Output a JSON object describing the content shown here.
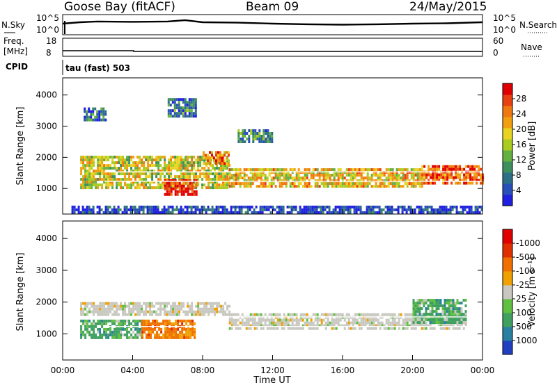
{
  "header": {
    "station": "Goose Bay (fitACF)",
    "beam": "Beam 09",
    "date": "24/May/2015"
  },
  "side_labels": {
    "nsky": "N.Sky",
    "nsearch": "N.Search",
    "freq_line1": "Freq.",
    "freq_line2": "[MHz]",
    "nave": "Nave",
    "cpid": "CPID",
    "cpid_value": "tau (fast) 503"
  },
  "chart_data": [
    {
      "type": "line",
      "panel": "noise",
      "left_ticks": [
        "10^5",
        "10^0"
      ],
      "right_ticks": [
        "10^5",
        "10^0"
      ],
      "series": [
        {
          "name": "N.Sky",
          "x": [
            "00:00",
            "01:00",
            "02:00",
            "04:00",
            "06:00",
            "07:00",
            "08:00",
            "10:00",
            "12:00",
            "14:00",
            "16:00",
            "18:00",
            "20:00",
            "22:00",
            "23:59"
          ],
          "y_fraction": [
            0.55,
            0.62,
            0.66,
            0.64,
            0.66,
            0.72,
            0.62,
            0.6,
            0.55,
            0.52,
            0.5,
            0.52,
            0.55,
            0.57,
            0.62
          ]
        }
      ]
    },
    {
      "type": "line",
      "panel": "frequency",
      "left_ticks": [
        "18",
        "8"
      ],
      "right_ticks": [
        "60",
        "0"
      ],
      "series": [
        {
          "name": "Freq.",
          "x": [
            "00:00",
            "04:15",
            "04:16",
            "24:00"
          ],
          "y": [
            10.6,
            10.6,
            10.2,
            10.2
          ]
        }
      ]
    },
    {
      "type": "heatmap",
      "panel": "power",
      "ylabel": "Slant Range [km]",
      "yticks": [
        1000,
        2000,
        3000,
        4000
      ],
      "ylim": [
        180,
        4550
      ],
      "colorbar": {
        "label": "Power [dB]",
        "ticks": [
          "4",
          "8",
          "12",
          "16",
          "20",
          "24",
          "28"
        ],
        "colors": [
          "#2020e0",
          "#2850b8",
          "#2d6f86",
          "#3d8f5c",
          "#64b040",
          "#aacc20",
          "#e8d420",
          "#f0a010",
          "#f07810",
          "#e84010",
          "#e00000"
        ]
      },
      "bands": [
        {
          "t_start": 1.0,
          "t_end": 9.5,
          "r_low": 1050,
          "r_high": 2050,
          "level": 0.55
        },
        {
          "t_start": 8.0,
          "t_end": 9.5,
          "r_low": 1800,
          "r_high": 2200,
          "level": 0.75
        },
        {
          "t_start": 9.5,
          "t_end": 20.5,
          "r_low": 1100,
          "r_high": 1650,
          "level": 0.62
        },
        {
          "t_start": 20.5,
          "t_end": 24.0,
          "r_low": 1150,
          "r_high": 1750,
          "level": 0.85
        },
        {
          "t_start": 5.8,
          "t_end": 7.6,
          "r_low": 800,
          "r_high": 1300,
          "level": 0.95
        },
        {
          "t_start": 1.2,
          "t_end": 2.5,
          "r_low": 3200,
          "r_high": 3600,
          "level": 0.2
        },
        {
          "t_start": 6.0,
          "t_end": 7.6,
          "r_low": 3300,
          "r_high": 3900,
          "level": 0.25
        },
        {
          "t_start": 10.0,
          "t_end": 12.0,
          "r_low": 2500,
          "r_high": 2900,
          "level": 0.3
        },
        {
          "t_start": 0.5,
          "t_end": 24.0,
          "r_low": 250,
          "r_high": 450,
          "level": 0.1
        }
      ]
    },
    {
      "type": "heatmap",
      "panel": "velocity",
      "ylabel": "Slant Range [km]",
      "xlabel": "Time UT",
      "xticks": [
        "00:00",
        "04:00",
        "08:00",
        "12:00",
        "16:00",
        "20:00",
        "00:00"
      ],
      "yticks": [
        1000,
        2000,
        3000,
        4000
      ],
      "ylim": [
        180,
        4550
      ],
      "colorbar": {
        "label": "Velocity [m s⁻¹]",
        "ticks": [
          "1000",
          "500",
          "100",
          "25",
          "-25",
          "-100",
          "-500",
          "-1000"
        ],
        "colors": [
          "#2040c0",
          "#2880a0",
          "#40a060",
          "#60c040",
          "#c8c8c0",
          "#f0a000",
          "#f07000",
          "#e03000",
          "#e00000"
        ]
      },
      "bands": [
        {
          "t_start": 1.0,
          "t_end": 9.5,
          "r_low": 1650,
          "r_high": 2000,
          "kind": "gray"
        },
        {
          "t_start": 9.5,
          "t_end": 23.0,
          "r_low": 1150,
          "r_high": 1650,
          "kind": "gray"
        },
        {
          "t_start": 1.0,
          "t_end": 4.5,
          "r_low": 900,
          "r_high": 1450,
          "kind": "green"
        },
        {
          "t_start": 4.5,
          "t_end": 7.6,
          "r_low": 850,
          "r_high": 1450,
          "kind": "orange"
        },
        {
          "t_start": 20.0,
          "t_end": 23.0,
          "r_low": 1400,
          "r_high": 2100,
          "kind": "green"
        }
      ]
    }
  ]
}
